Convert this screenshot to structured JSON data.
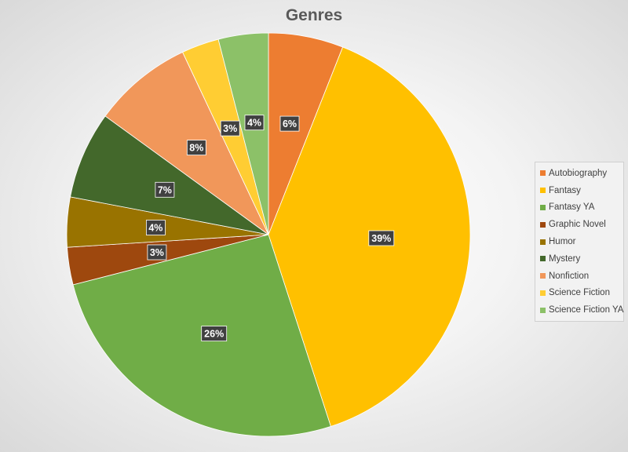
{
  "chart_data": {
    "type": "pie",
    "title": "Genres",
    "legend_position": "right",
    "start_angle_deg": 0,
    "direction": "clockwise",
    "slices": [
      {
        "label": "Autobiography",
        "value": 6,
        "data_label": "6%",
        "color": "#ED7D31"
      },
      {
        "label": "Fantasy",
        "value": 39,
        "data_label": "39%",
        "color": "#FFC000"
      },
      {
        "label": "Fantasy YA",
        "value": 26,
        "data_label": "26%",
        "color": "#70AD47"
      },
      {
        "label": "Graphic Novel",
        "value": 3,
        "data_label": "3%",
        "color": "#9E480E"
      },
      {
        "label": "Humor",
        "value": 4,
        "data_label": "4%",
        "color": "#997300"
      },
      {
        "label": "Mystery",
        "value": 7,
        "data_label": "7%",
        "color": "#43682B"
      },
      {
        "label": "Nonfiction",
        "value": 8,
        "data_label": "8%",
        "color": "#F1975A"
      },
      {
        "label": "Science Fiction",
        "value": 3,
        "data_label": "3%",
        "color": "#FFCD33"
      },
      {
        "label": "Science Fiction YA",
        "value": 4,
        "data_label": "4%",
        "color": "#8CC168"
      }
    ]
  }
}
